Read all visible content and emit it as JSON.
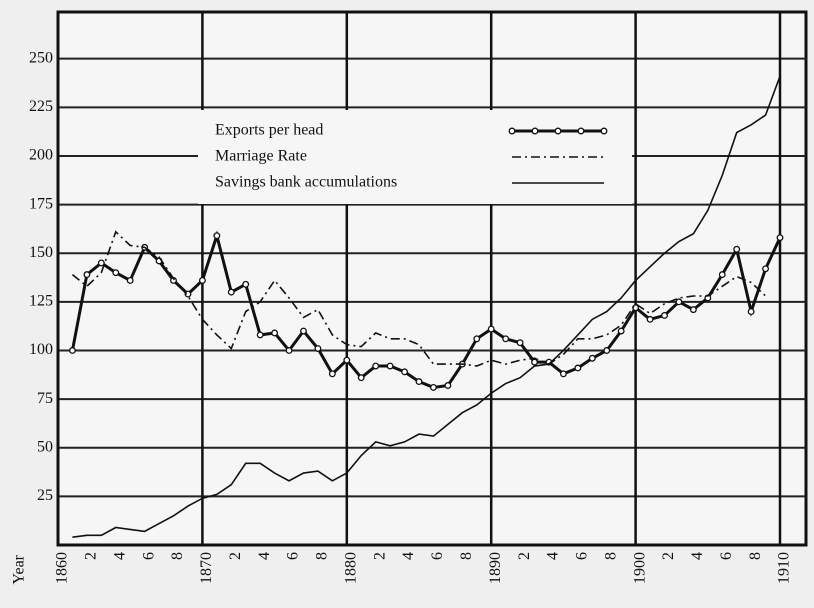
{
  "chart_data": {
    "type": "line",
    "axis_title": "Year",
    "x": [
      1861,
      1862,
      1863,
      1864,
      1865,
      1866,
      1867,
      1868,
      1869,
      1870,
      1871,
      1872,
      1873,
      1874,
      1875,
      1876,
      1877,
      1878,
      1879,
      1880,
      1881,
      1882,
      1883,
      1884,
      1885,
      1886,
      1887,
      1888,
      1889,
      1890,
      1891,
      1892,
      1893,
      1894,
      1895,
      1896,
      1897,
      1898,
      1899,
      1900,
      1901,
      1902,
      1903,
      1904,
      1905,
      1906,
      1907,
      1908,
      1909,
      1910
    ],
    "series": [
      {
        "name": "Exports per head",
        "color": "#111111",
        "style": "markers",
        "values": [
          100,
          139,
          145,
          140,
          136,
          153,
          146,
          136,
          129,
          136,
          159,
          130,
          134,
          108,
          109,
          100,
          110,
          101,
          88,
          95,
          86,
          92,
          92,
          89,
          84,
          81,
          82,
          93,
          106,
          111,
          106,
          104,
          94,
          94,
          88,
          91,
          96,
          100,
          110,
          122,
          116,
          118,
          125,
          121,
          127,
          139,
          152,
          120,
          142,
          158
        ]
      },
      {
        "name": "Marriage Rate",
        "color": "#111111",
        "style": "dash-dot",
        "values": [
          139,
          133,
          140,
          161,
          154,
          153,
          148,
          137,
          128,
          116,
          108,
          101,
          120,
          125,
          136,
          127,
          117,
          121,
          108,
          103,
          102,
          109,
          106,
          106,
          103,
          93,
          93,
          93,
          92,
          95,
          93,
          95,
          96,
          93,
          98,
          106,
          106,
          108,
          113,
          124,
          119,
          124,
          127,
          128,
          128,
          133,
          138,
          135,
          128,
          null
        ]
      },
      {
        "name": "Savings bank accumulations",
        "color": "#111111",
        "style": "solid",
        "values": [
          4,
          5,
          5,
          9,
          8,
          7,
          11,
          15,
          20,
          24,
          26,
          31,
          42,
          42,
          37,
          33,
          37,
          38,
          33,
          37,
          46,
          53,
          51,
          53,
          57,
          56,
          62,
          68,
          72,
          78,
          83,
          86,
          92,
          93,
          100,
          108,
          116,
          120,
          127,
          136,
          143,
          150,
          156,
          160,
          172,
          190,
          212,
          216,
          221,
          241
        ]
      }
    ],
    "xlim": [
      1860,
      1911.8
    ],
    "xticks": [
      1860,
      {
        "value": 1862,
        "label": "2"
      },
      {
        "value": 1864,
        "label": "4"
      },
      {
        "value": 1866,
        "label": "6"
      },
      {
        "value": 1868,
        "label": "8"
      },
      1870,
      {
        "value": 1872,
        "label": "2"
      },
      {
        "value": 1874,
        "label": "4"
      },
      {
        "value": 1876,
        "label": "6"
      },
      {
        "value": 1878,
        "label": "8"
      },
      1880,
      {
        "value": 1882,
        "label": "2"
      },
      {
        "value": 1884,
        "label": "4"
      },
      {
        "value": 1886,
        "label": "6"
      },
      {
        "value": 1888,
        "label": "8"
      },
      1890,
      {
        "value": 1892,
        "label": "2"
      },
      {
        "value": 1894,
        "label": "4"
      },
      {
        "value": 1896,
        "label": "6"
      },
      {
        "value": 1898,
        "label": "8"
      },
      1900,
      {
        "value": 1902,
        "label": "2"
      },
      {
        "value": 1904,
        "label": "4"
      },
      {
        "value": 1906,
        "label": "6"
      },
      {
        "value": 1908,
        "label": "8"
      },
      1910
    ],
    "ylim": [
      0,
      274
    ],
    "yticks": [
      25,
      50,
      75,
      100,
      125,
      150,
      175,
      200,
      225,
      250
    ],
    "grid": true
  }
}
